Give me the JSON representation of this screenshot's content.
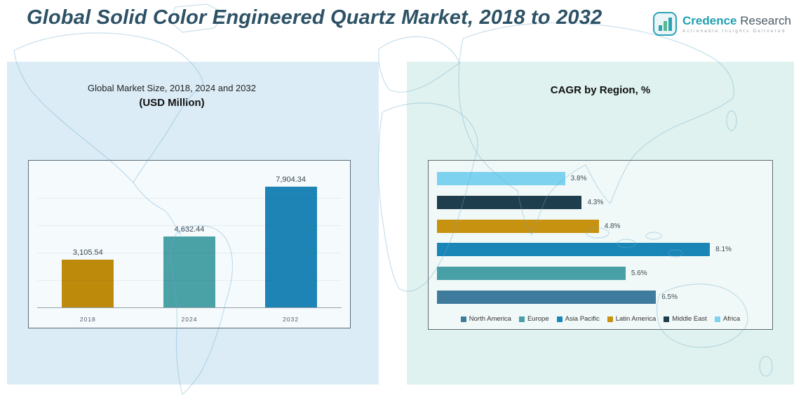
{
  "header": {
    "title": "Global Solid Color Engineered Quartz Market, 2018 to 2032"
  },
  "logo": {
    "brand_primary": "Credence",
    "brand_secondary": " Research",
    "tagline": "Actionable Insights Delivered"
  },
  "chart_data": [
    {
      "id": "global-market-size",
      "type": "bar",
      "orientation": "vertical",
      "title": "Global Market Size, 2018, 2024 and 2032",
      "subtitle": "(USD Million)",
      "categories": [
        "2018",
        "2024",
        "2032"
      ],
      "values": [
        3105.54,
        4632.44,
        7904.34
      ],
      "value_labels": [
        "3,105.54",
        "4,632.44",
        "7,904.34"
      ],
      "bar_colors": [
        "#BD8A0B",
        "#4AA1A6",
        "#1D84B5"
      ],
      "ylabel": "USD Million",
      "ylim": [
        0,
        9000
      ],
      "grid": true,
      "legend_position": "none"
    },
    {
      "id": "cagr-by-region",
      "type": "bar",
      "orientation": "horizontal",
      "title": "CAGR by Region, %",
      "categories": [
        "Africa",
        "Middle East",
        "Latin America",
        "Asia Pacific",
        "Europe",
        "North America"
      ],
      "values": [
        3.8,
        4.3,
        4.8,
        8.1,
        5.6,
        6.5
      ],
      "value_labels": [
        "3.8%",
        "4.3%",
        "4.8%",
        "8.1%",
        "5.6%",
        "6.5%"
      ],
      "bar_colors": [
        "#7DD2F0",
        "#1E3D4D",
        "#C7920F",
        "#1A86B8",
        "#47A0A6",
        "#3F7B9D"
      ],
      "xlim": [
        0,
        9.7
      ],
      "grid": false,
      "legend_position": "bottom",
      "legend": [
        "North America",
        "Europe",
        "Asia Pacific",
        "Latin America",
        "Middle East",
        "Africa"
      ],
      "legend_colors": [
        "#3F7B9D",
        "#47A0A6",
        "#1A86B8",
        "#C7920F",
        "#1E3D4D",
        "#7DD2F0"
      ]
    }
  ]
}
